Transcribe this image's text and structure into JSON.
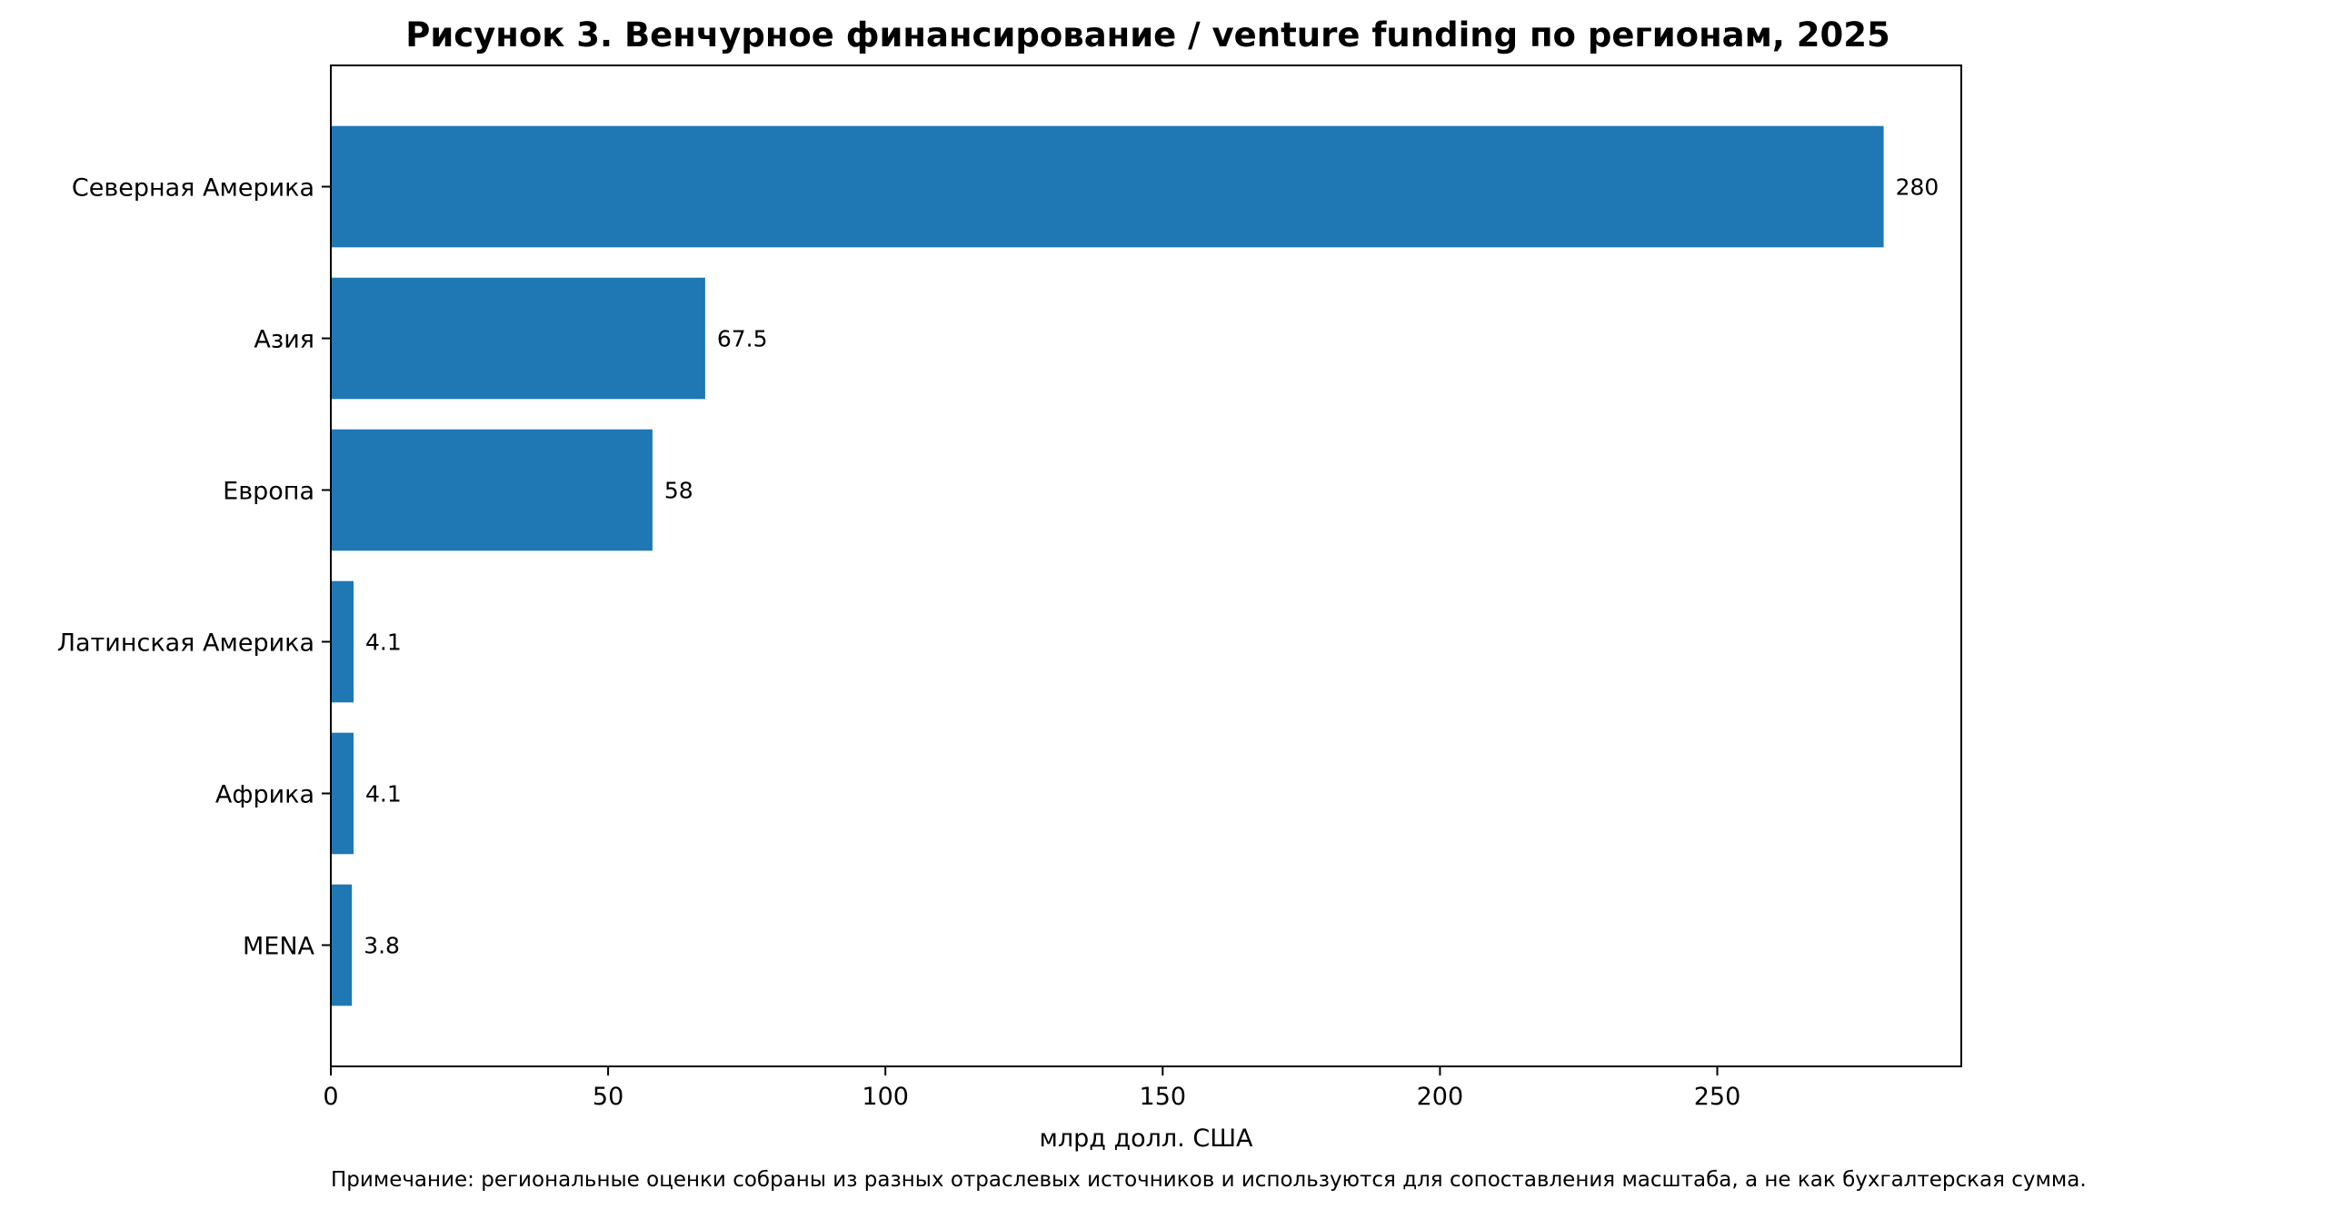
{
  "chart_data": {
    "type": "bar",
    "orientation": "horizontal",
    "title": "Рисунок 3. Венчурное финансирование / venture funding по регионам, 2025",
    "xlabel": "млрд долл. США",
    "ylabel": "",
    "categories": [
      "Северная Америка",
      "Азия",
      "Европа",
      "Латинская Америка",
      "Африка",
      "MENA"
    ],
    "values": [
      280,
      67.5,
      58,
      4.1,
      4.1,
      3.8
    ],
    "data_labels": [
      "280",
      "67.5",
      "58",
      "4.1",
      "4.1",
      "3.8"
    ],
    "xlim": [
      0,
      294
    ],
    "xticks": [
      0,
      50,
      100,
      150,
      200,
      250
    ],
    "xtick_labels": [
      "0",
      "50",
      "100",
      "150",
      "200",
      "250"
    ],
    "grid": false,
    "legend": "none",
    "bar_color": "#1f77b4",
    "note": "Примечание: региональные оценки собраны из разных отраслевых источников и используются для сопоставления масштаба, а не как бухгалтерская сумма."
  }
}
